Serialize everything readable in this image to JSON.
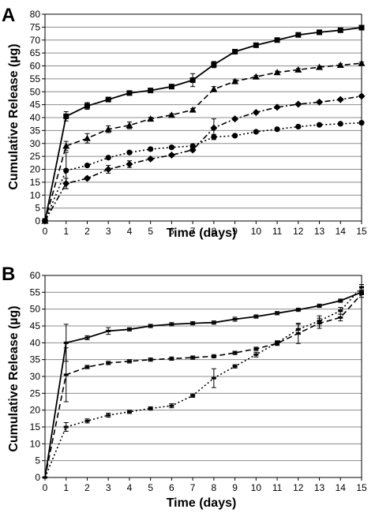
{
  "chart_data": [
    {
      "panel": "A",
      "type": "line",
      "xlabel": "Time (days)",
      "ylabel": "Cumulative Release (µg)",
      "xlim": [
        0,
        15
      ],
      "ylim": [
        0,
        80
      ],
      "xticks": [
        "0",
        "1",
        "2",
        "3",
        "4",
        "5",
        "6",
        "7",
        "8",
        "9",
        "10",
        "11",
        "12",
        "13",
        "14",
        "15"
      ],
      "yticks": [
        "0",
        "5",
        "10",
        "15",
        "20",
        "25",
        "30",
        "35",
        "40",
        "45",
        "50",
        "55",
        "60",
        "65",
        "70",
        "75",
        "80"
      ],
      "grid": "horizontal",
      "series": [
        {
          "marker": "square",
          "line": "solid",
          "x": [
            0,
            1,
            2,
            3,
            4,
            5,
            6,
            7,
            8,
            9,
            10,
            11,
            12,
            13,
            14,
            15
          ],
          "y": [
            0,
            40.5,
            44.5,
            47,
            49.5,
            50.5,
            52,
            54.5,
            60.5,
            65.5,
            68,
            70,
            72,
            73,
            73.8,
            74.8
          ],
          "err": [
            0,
            1.8,
            1.3,
            0.5,
            0.6,
            0.5,
            0.5,
            2.5,
            1.2,
            0.6,
            0.8,
            0.5,
            0.5,
            0.5,
            0.5,
            0.6
          ]
        },
        {
          "marker": "triangle",
          "line": "dashed",
          "x": [
            0,
            1,
            2,
            3,
            4,
            5,
            6,
            7,
            8,
            9,
            10,
            11,
            12,
            13,
            14,
            15
          ],
          "y": [
            0,
            29,
            32,
            35.5,
            37,
            39.5,
            41,
            43,
            51,
            54,
            55.8,
            57.5,
            58.5,
            59.5,
            60.3,
            61
          ],
          "err": [
            0,
            1.8,
            1.8,
            1.3,
            1.3,
            0.6,
            0.5,
            0.5,
            1,
            0.6,
            0.5,
            0.5,
            0.5,
            0.5,
            0.5,
            0.5
          ]
        },
        {
          "marker": "circle",
          "line": "dotted",
          "x": [
            0,
            1,
            2,
            3,
            4,
            5,
            6,
            7,
            8,
            9,
            10,
            11,
            12,
            13,
            14,
            15
          ],
          "y": [
            0,
            19.5,
            21.5,
            24.5,
            26.5,
            27.8,
            28.5,
            29,
            32.5,
            33,
            34.5,
            35.5,
            36.5,
            37.2,
            37.6,
            38
          ],
          "err": [
            0,
            7,
            0.5,
            0.5,
            0.5,
            0.5,
            0.5,
            0.5,
            1,
            0.5,
            0.5,
            0.5,
            0.5,
            0.5,
            0.5,
            0.5
          ]
        },
        {
          "marker": "diamond",
          "line": "dash-dot",
          "x": [
            0,
            1,
            2,
            3,
            4,
            5,
            6,
            7,
            8,
            9,
            10,
            11,
            12,
            13,
            14,
            15
          ],
          "y": [
            0,
            14.5,
            16.5,
            20,
            22,
            24,
            25.5,
            27.5,
            36,
            39.5,
            42,
            44,
            45.2,
            46,
            47,
            48.3
          ],
          "err": [
            0,
            2,
            0.6,
            1.5,
            1.3,
            0.5,
            0.5,
            0.6,
            3.5,
            0.5,
            0.5,
            0.5,
            0.5,
            0.5,
            0.5,
            0.5
          ]
        }
      ]
    },
    {
      "panel": "B",
      "type": "line",
      "xlabel": "Time (days)",
      "ylabel": "Cumulative Release (µg)",
      "xlim": [
        0,
        15
      ],
      "ylim": [
        0,
        60
      ],
      "xticks": [
        "0",
        "1",
        "2",
        "3",
        "4",
        "5",
        "6",
        "7",
        "8",
        "9",
        "10",
        "11",
        "12",
        "13",
        "14",
        "15"
      ],
      "yticks": [
        "0",
        "5",
        "10",
        "15",
        "20",
        "25",
        "30",
        "35",
        "40",
        "45",
        "50",
        "55",
        "60"
      ],
      "grid": "horizontal",
      "series": [
        {
          "marker": "dash",
          "line": "solid",
          "x": [
            0,
            1,
            2,
            3,
            4,
            5,
            6,
            7,
            8,
            9,
            10,
            11,
            12,
            13,
            14,
            15
          ],
          "y": [
            0,
            40,
            41.5,
            43.5,
            44,
            45,
            45.5,
            45.8,
            46,
            47,
            47.8,
            48.8,
            49.8,
            51,
            52.5,
            55
          ],
          "err": [
            0,
            5.5,
            0.6,
            1,
            0.5,
            0.5,
            0.5,
            0.5,
            0.5,
            0.6,
            0.5,
            0.5,
            0.5,
            0.5,
            0.5,
            0.6
          ]
        },
        {
          "marker": "dash",
          "line": "dashed",
          "x": [
            0,
            1,
            2,
            3,
            4,
            5,
            6,
            7,
            8,
            9,
            10,
            11,
            12,
            13,
            14,
            15
          ],
          "y": [
            0,
            30.5,
            32.8,
            34,
            34.5,
            35,
            35.3,
            35.6,
            36,
            37,
            38.2,
            39.8,
            42.8,
            45.8,
            47.5,
            54.5
          ],
          "err": [
            0,
            8,
            0.5,
            0.5,
            0.5,
            0.5,
            0.5,
            0.5,
            0.5,
            0.5,
            0.5,
            0.6,
            3,
            1.5,
            1,
            1
          ]
        },
        {
          "marker": "dash",
          "line": "dotted",
          "x": [
            0,
            1,
            2,
            3,
            4,
            5,
            6,
            7,
            8,
            9,
            10,
            11,
            12,
            13,
            14,
            15
          ],
          "y": [
            0,
            15,
            16.8,
            18.5,
            19.5,
            20.5,
            21.3,
            24.3,
            29.5,
            33,
            36.5,
            40,
            44,
            46.5,
            49.5,
            56.5
          ],
          "err": [
            0,
            1.3,
            0.6,
            0.6,
            0.5,
            0.5,
            0.6,
            0.5,
            2.8,
            0.5,
            0.7,
            0.6,
            1.5,
            1.5,
            1,
            0.8
          ]
        }
      ]
    }
  ]
}
